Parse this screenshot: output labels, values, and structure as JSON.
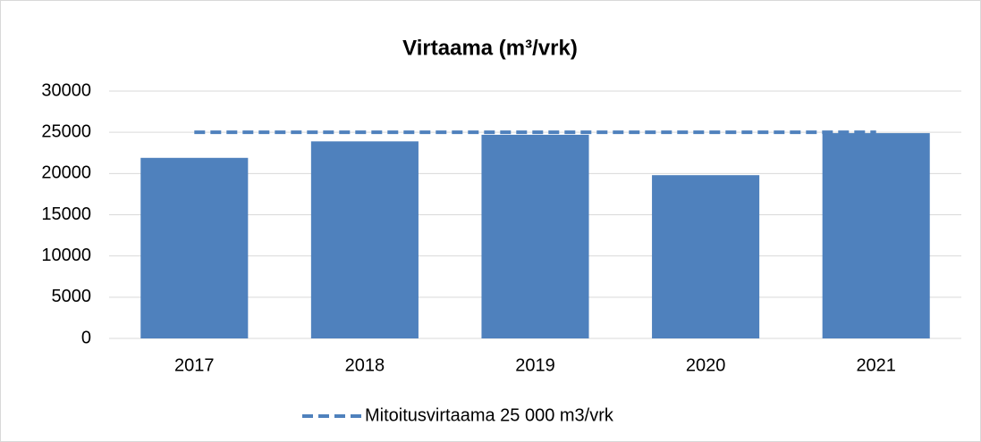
{
  "chart_data": {
    "type": "bar",
    "title": "Virtaama (m³/vrk)",
    "categories": [
      "2017",
      "2018",
      "2019",
      "2020",
      "2021"
    ],
    "series": [
      {
        "color": "#4f81bd",
        "values": [
          21900,
          23900,
          24700,
          19800,
          24900
        ]
      },
      {
        "name": "Mitoitusvirtaama 25 000 m3/vrk",
        "type": "line",
        "dashed": true,
        "color": "#4f81bd",
        "values": [
          25000,
          25000,
          25000,
          25000,
          25000
        ]
      }
    ],
    "ylim": [
      0,
      30000
    ],
    "yticks": [
      0,
      5000,
      10000,
      15000,
      20000,
      25000,
      30000
    ],
    "grid": true,
    "legend": "bottom"
  }
}
